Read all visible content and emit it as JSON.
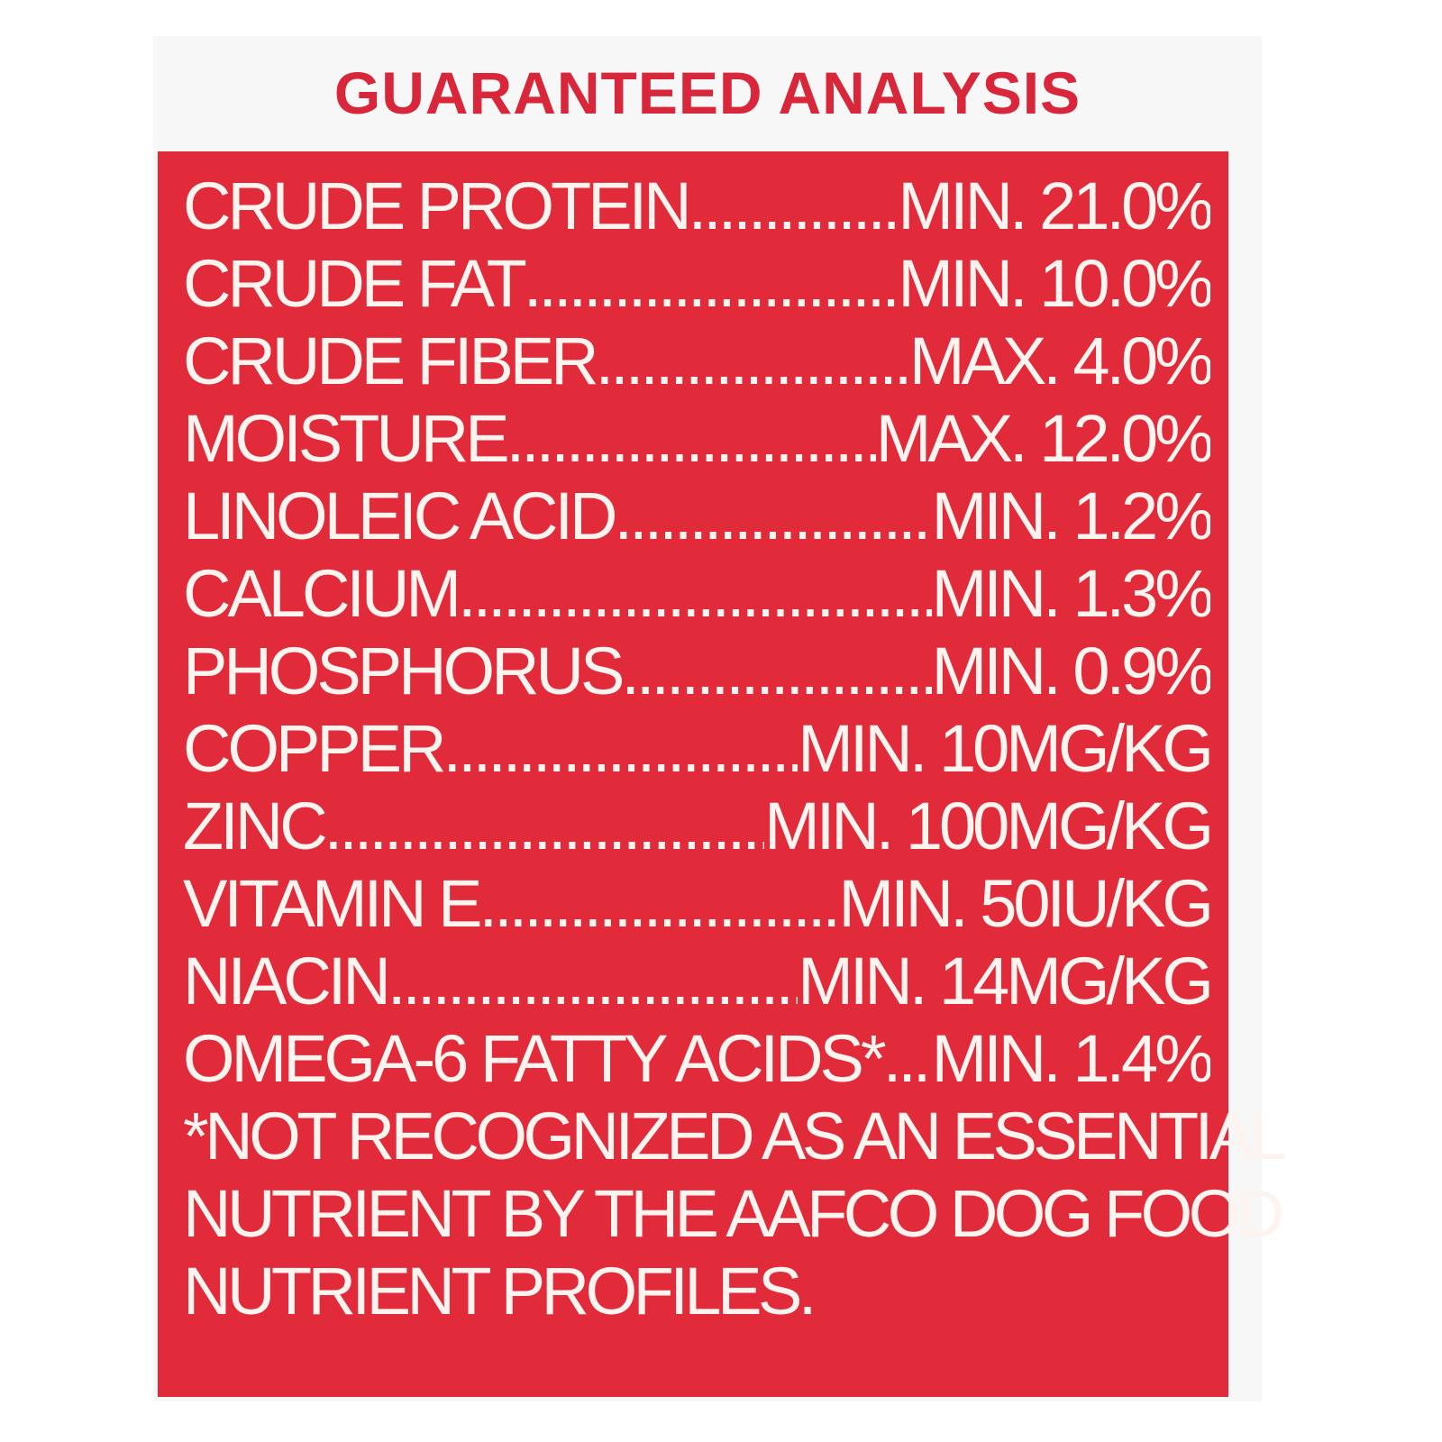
{
  "title": "GUARANTEED ANALYSIS",
  "colors": {
    "panel": "#e12a3a",
    "title": "#d8263a",
    "text": "#fdf3ef"
  },
  "rows": [
    {
      "name": "CRUDE PROTEIN",
      "value": "MIN. 21.0%"
    },
    {
      "name": "CRUDE FAT",
      "value": "MIN. 10.0%"
    },
    {
      "name": "CRUDE FIBER",
      "value": "MAX. 4.0%"
    },
    {
      "name": "MOISTURE",
      "value": "MAX. 12.0%"
    },
    {
      "name": "LINOLEIC ACID",
      "value": "MIN. 1.2%"
    },
    {
      "name": "CALCIUM",
      "value": "MIN. 1.3%"
    },
    {
      "name": "PHOSPHORUS",
      "value": "MIN. 0.9%"
    },
    {
      "name": "COPPER",
      "value": "MIN. 10MG/KG"
    },
    {
      "name": "ZINC",
      "value": "MIN. 100MG/KG"
    },
    {
      "name": "VITAMIN E",
      "value": "MIN. 50IU/KG"
    },
    {
      "name": "NIACIN",
      "value": "MIN. 14MG/KG"
    },
    {
      "name": "OMEGA-6 FATTY ACIDS*",
      "value": "MIN. 1.4%"
    }
  ],
  "footnote": [
    "*NOT RECOGNIZED AS AN ESSENTIAL",
    "NUTRIENT BY THE AAFCO DOG FOOD",
    "NUTRIENT PROFILES."
  ]
}
